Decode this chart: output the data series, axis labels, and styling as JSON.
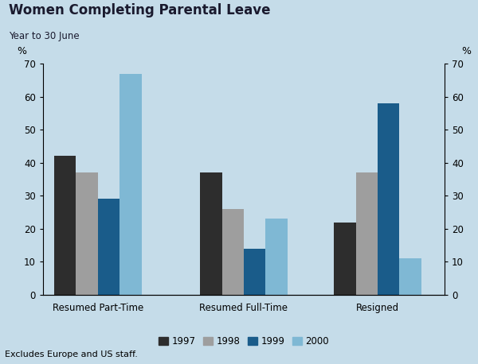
{
  "title": "Women Completing Parental Leave",
  "subtitle": "Year to 30 June",
  "footnote": "Excludes Europe and US staff.",
  "categories": [
    "Resumed Part-Time",
    "Resumed Full-Time",
    "Resigned"
  ],
  "years": [
    "1997",
    "1998",
    "1999",
    "2000"
  ],
  "values": {
    "Resumed Part-Time": [
      42,
      37,
      29,
      67
    ],
    "Resumed Full-Time": [
      37,
      26,
      14,
      23
    ],
    "Resigned": [
      22,
      37,
      58,
      11
    ]
  },
  "bar_colors": [
    "#2d2d2d",
    "#9e9e9e",
    "#1a5c8a",
    "#7fb8d4"
  ],
  "title_bg_color_top": "#2f7ab5",
  "title_bg_color_bottom": "#4a9acf",
  "chart_bg_color": "#c5dce9",
  "title_color": "#1a1a2e",
  "subtitle_color": "#1a1a2e",
  "outer_bg_color": "#c5dce9",
  "ylabel": "%",
  "ylim": [
    0,
    70
  ],
  "yticks": [
    0,
    10,
    20,
    30,
    40,
    50,
    60,
    70
  ],
  "bar_width": 0.18,
  "x_positions": [
    0.35,
    1.55,
    2.65
  ],
  "xlim": [
    -0.1,
    3.2
  ]
}
